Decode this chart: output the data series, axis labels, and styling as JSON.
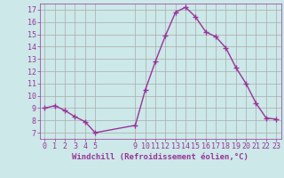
{
  "x": [
    0,
    1,
    2,
    3,
    4,
    5,
    9,
    10,
    11,
    12,
    13,
    14,
    15,
    16,
    17,
    18,
    19,
    20,
    21,
    22,
    23
  ],
  "y": [
    9.0,
    9.2,
    8.8,
    8.3,
    7.9,
    7.0,
    7.6,
    10.5,
    12.8,
    14.9,
    16.8,
    17.2,
    16.4,
    15.2,
    14.8,
    13.9,
    12.3,
    11.0,
    9.4,
    8.2,
    8.1
  ],
  "line_color": "#993399",
  "marker": "+",
  "markersize": 4,
  "linewidth": 1.0,
  "bg_color": "#cce8e8",
  "grid_color": "#aaaaaa",
  "xlabel": "Windchill (Refroidissement éolien,°C)",
  "xlim": [
    -0.5,
    23.5
  ],
  "ylim": [
    6.5,
    17.5
  ],
  "yticks": [
    7,
    8,
    9,
    10,
    11,
    12,
    13,
    14,
    15,
    16,
    17
  ],
  "xticks": [
    0,
    1,
    2,
    3,
    4,
    5,
    9,
    10,
    11,
    12,
    13,
    14,
    15,
    16,
    17,
    18,
    19,
    20,
    21,
    22,
    23
  ],
  "tick_color": "#993399",
  "label_color": "#993399",
  "tick_fontsize": 6.0,
  "xlabel_fontsize": 6.5
}
